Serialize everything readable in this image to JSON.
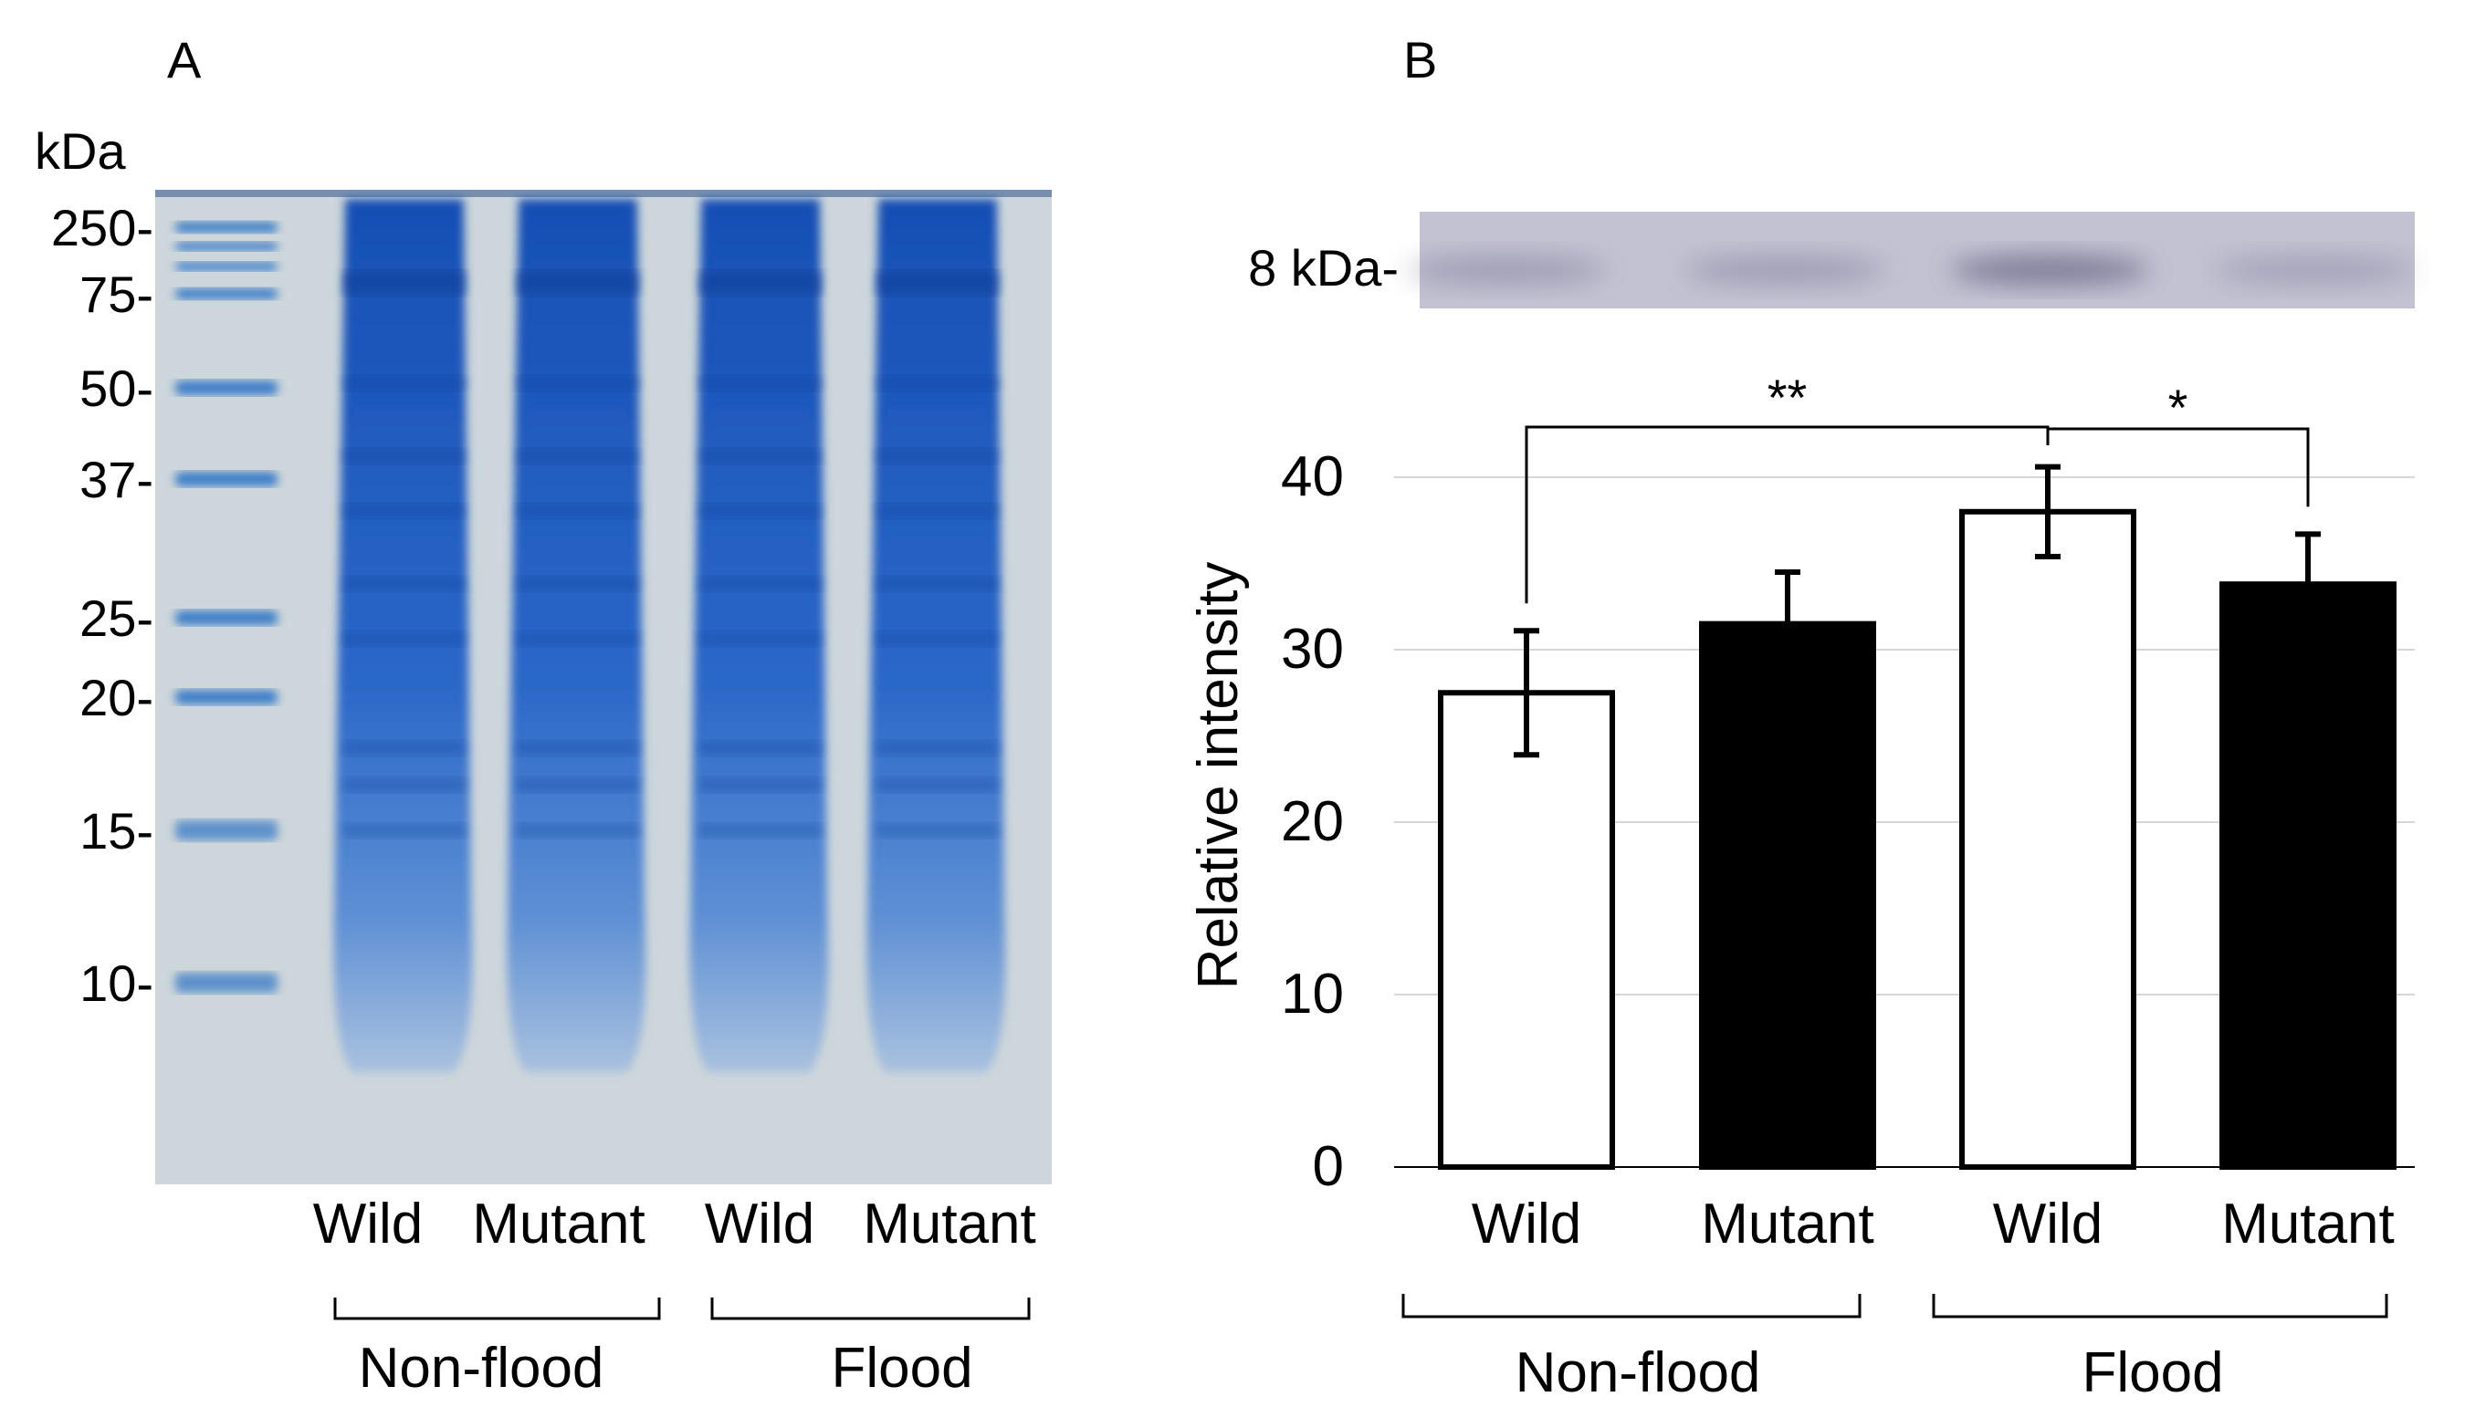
{
  "panel_a": {
    "label": "A",
    "unit": "kDa",
    "markers": [
      {
        "label": "250-",
        "kda": 250
      },
      {
        "label": "75-",
        "kda": 75
      },
      {
        "label": "50-",
        "kda": 50
      },
      {
        "label": "37-",
        "kda": 37
      },
      {
        "label": "25-",
        "kda": 25
      },
      {
        "label": "20-",
        "kda": 20
      },
      {
        "label": "15-",
        "kda": 15
      },
      {
        "label": "10-",
        "kda": 10
      }
    ],
    "lanes": [
      "Wild",
      "Mutant",
      "Wild",
      "Mutant"
    ],
    "groups": [
      "Non-flood",
      "Flood"
    ],
    "colors": {
      "gel_bg": "#cdd6da",
      "stain": "#1f5fc4",
      "stain_light": "#6d9ad8",
      "ladder": "#2e74c6"
    }
  },
  "panel_b": {
    "label": "B",
    "blot_label": "8 kDa-",
    "blot_band_strength": [
      0.35,
      0.35,
      0.7,
      0.3
    ],
    "colors": {
      "blot_bg": "#c3c2d2",
      "blot_band": "#5e5a7e",
      "wild_fill": "#ffffff",
      "mutant_fill": "#000000"
    }
  },
  "chart_data": {
    "type": "bar",
    "categories": [
      "Wild",
      "Mutant",
      "Wild",
      "Mutant"
    ],
    "groups": [
      "Non-flood",
      "Flood"
    ],
    "values": [
      27.5,
      31.5,
      38.0,
      33.8
    ],
    "errors": [
      3.6,
      3.0,
      2.6,
      2.9
    ],
    "fills": [
      "#ffffff",
      "#000000",
      "#ffffff",
      "#000000"
    ],
    "ylabel": "Relative intensity",
    "yticks": [
      0,
      10,
      20,
      30,
      40
    ],
    "ylim": [
      0,
      40
    ],
    "grid": true,
    "significance": [
      {
        "from": 0,
        "to": 2,
        "label": "**"
      },
      {
        "from": 2,
        "to": 3,
        "label": "*"
      }
    ]
  }
}
